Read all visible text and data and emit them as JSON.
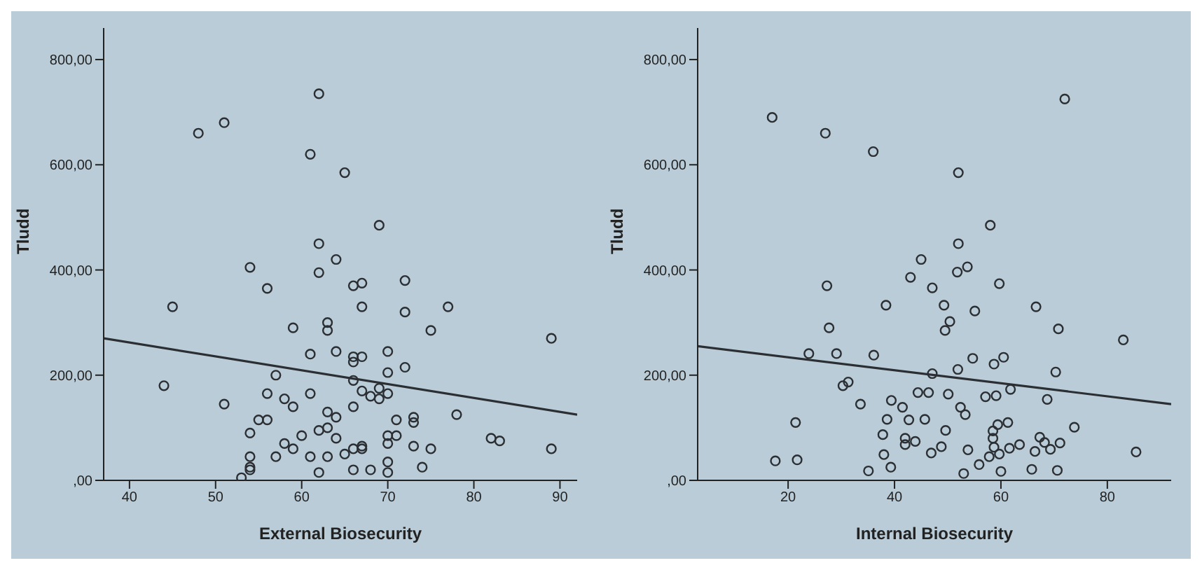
{
  "chart_data": [
    {
      "type": "scatter",
      "xlabel": "External Biosecurity",
      "ylabel": "Tludd",
      "xlim": [
        37,
        92
      ],
      "xticks": [
        40,
        50,
        60,
        70,
        80,
        90
      ],
      "ylim": [
        0,
        860
      ],
      "yticks": [
        {
          "value": 0,
          "label": ",00"
        },
        {
          "value": 200,
          "label": "200,00"
        },
        {
          "value": 400,
          "label": "400,00"
        },
        {
          "value": 600,
          "label": "600,00"
        },
        {
          "value": 800,
          "label": "800,00"
        }
      ],
      "series": [
        {
          "color": "#2b2f33",
          "marker": "circle",
          "x": [
            48,
            51,
            62,
            61,
            65,
            69,
            62,
            64,
            54,
            62,
            72,
            66,
            67,
            56,
            45,
            67,
            72,
            77,
            63,
            63,
            59,
            75,
            61,
            64,
            66,
            66,
            67,
            70,
            70,
            72,
            57,
            44,
            66,
            67,
            68,
            69,
            69,
            70,
            56,
            58,
            59,
            61,
            66,
            63,
            64,
            51,
            55,
            56,
            54,
            62,
            63,
            64,
            60,
            58,
            59,
            57,
            61,
            63,
            65,
            66,
            67,
            67,
            70,
            70,
            71,
            71,
            73,
            73,
            73,
            75,
            78,
            82,
            83,
            54,
            54,
            54,
            53,
            62,
            66,
            68,
            70,
            70,
            74,
            89,
            89
          ],
          "values": [
            660,
            680,
            735,
            620,
            585,
            485,
            450,
            420,
            405,
            395,
            380,
            370,
            375,
            365,
            330,
            330,
            320,
            330,
            300,
            285,
            290,
            285,
            240,
            245,
            235,
            225,
            235,
            245,
            205,
            215,
            200,
            180,
            190,
            170,
            160,
            175,
            155,
            165,
            165,
            155,
            140,
            165,
            140,
            130,
            120,
            145,
            115,
            115,
            90,
            95,
            100,
            80,
            85,
            70,
            60,
            45,
            45,
            45,
            50,
            60,
            65,
            60,
            85,
            70,
            85,
            115,
            120,
            110,
            65,
            60,
            125,
            80,
            75,
            45,
            25,
            20,
            5,
            15,
            20,
            20,
            35,
            15,
            25,
            270,
            60
          ]
        },
        {
          "type": "line",
          "color": "#2b2f33",
          "marker": "none",
          "x": [
            37,
            92
          ],
          "values": [
            270,
            125
          ]
        }
      ]
    },
    {
      "type": "scatter",
      "xlabel": "Internal Biosecurity",
      "ylabel": "Tludd",
      "xlim": [
        3,
        92
      ],
      "xticks": [
        20,
        40,
        60,
        80
      ],
      "ylim": [
        0,
        860
      ],
      "yticks": [
        {
          "value": 0,
          "label": ",00"
        },
        {
          "value": 200,
          "label": "200,00"
        },
        {
          "value": 400,
          "label": "400,00"
        },
        {
          "value": 600,
          "label": "600,00"
        },
        {
          "value": 800,
          "label": "800,00"
        }
      ],
      "series": [
        {
          "color": "#2b2f33",
          "marker": "circle",
          "x": [
            17,
            27,
            36,
            52,
            72,
            58,
            52,
            45,
            27.3,
            27.7,
            23.9,
            29.1,
            36.1,
            30.3,
            31.3,
            33.6,
            21.4,
            17.6,
            21.7,
            35.1,
            38,
            39.3,
            37.8,
            38.6,
            39.4,
            41.5,
            43,
            38.4,
            42.7,
            42,
            42,
            43.9,
            44.4,
            46.4,
            45.7,
            47.1,
            47.1,
            46.9,
            48.8,
            49.6,
            50.1,
            49.3,
            50.4,
            49.5,
            51.8,
            53.7,
            55.1,
            54.7,
            51.9,
            52.4,
            53.3,
            53.8,
            53,
            55.9,
            57.1,
            59.1,
            58.7,
            60.5,
            59.7,
            59.4,
            61.3,
            58.5,
            58.5,
            58.7,
            57.8,
            59.7,
            60,
            61.8,
            61.6,
            63.5,
            66.6,
            66.4,
            67.3,
            68.2,
            68.7,
            69.3,
            71.1,
            70.3,
            70.8,
            65.8,
            70.6,
            73.8,
            83,
            85.4
          ],
          "values": [
            690,
            660,
            625,
            585,
            725,
            485,
            450,
            420,
            370,
            290,
            241,
            241,
            238,
            180,
            187,
            145,
            110,
            37,
            39,
            18,
            49,
            25,
            87,
            116,
            152,
            139,
            386,
            333,
            115,
            80,
            68,
            74,
            167,
            167,
            116,
            366,
            203,
            52,
            64,
            95,
            164,
            333,
            302,
            285,
            396,
            406,
            322,
            232,
            211,
            139,
            125,
            58,
            13,
            30,
            159,
            161,
            221,
            234,
            374,
            106,
            110,
            94,
            80,
            63,
            45,
            50,
            17,
            173,
            61,
            68,
            330,
            55,
            82,
            72,
            154,
            59,
            71,
            206,
            288,
            21,
            19,
            101,
            267,
            54
          ]
        },
        {
          "type": "line",
          "color": "#2b2f33",
          "marker": "none",
          "x": [
            3,
            92
          ],
          "values": [
            255,
            145
          ]
        }
      ]
    }
  ]
}
